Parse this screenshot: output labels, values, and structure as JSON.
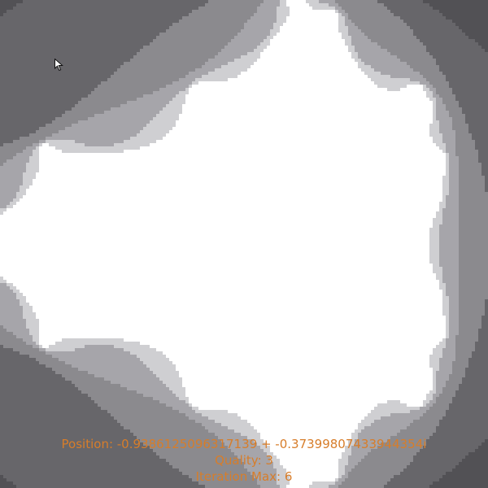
{
  "colors": {
    "background": "#2a2a2c",
    "band_1": "#3f3e42",
    "band_2": "#525155",
    "band_3": "#67666a",
    "band_4": "#8b8a8e",
    "band_5": "#a6a5aa",
    "band_6": "#cfcfd2",
    "set_interior": "#ffffff",
    "hud_text": "#d77d2a"
  },
  "fractal": {
    "type": "mandelbrot",
    "iterations_max": 6,
    "quality": 3
  },
  "hud": {
    "position_line": "Position: -0.9386125096317139 + -0.37399807433944354i",
    "quality_line": "Quality: 3",
    "iteration_line": "Iteration Max: 6"
  },
  "cursor_icon": "arrow-pointer-icon"
}
